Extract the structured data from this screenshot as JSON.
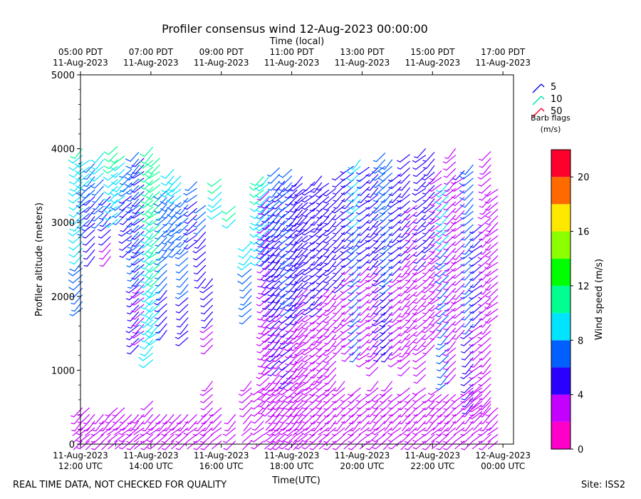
{
  "chart_data": {
    "type": "wind-barb",
    "title": "Profiler consensus wind 12-Aug-2023 00:00:00",
    "top_axis_title": "Time (local)",
    "top_ticks": [
      {
        "t": 12,
        "line1": "05:00 PDT",
        "line2": "11-Aug-2023"
      },
      {
        "t": 14,
        "line1": "07:00 PDT",
        "line2": "11-Aug-2023"
      },
      {
        "t": 16,
        "line1": "09:00 PDT",
        "line2": "11-Aug-2023"
      },
      {
        "t": 18,
        "line1": "11:00 PDT",
        "line2": "11-Aug-2023"
      },
      {
        "t": 20,
        "line1": "13:00 PDT",
        "line2": "11-Aug-2023"
      },
      {
        "t": 22,
        "line1": "15:00 PDT",
        "line2": "11-Aug-2023"
      },
      {
        "t": 24,
        "line1": "17:00 PDT",
        "line2": "11-Aug-2023"
      }
    ],
    "bottom_ticks": [
      {
        "t": 12,
        "line1": "11-Aug-2023",
        "line2": "12:00 UTC"
      },
      {
        "t": 14,
        "line1": "11-Aug-2023",
        "line2": "14:00 UTC"
      },
      {
        "t": 16,
        "line1": "11-Aug-2023",
        "line2": "16:00 UTC"
      },
      {
        "t": 18,
        "line1": "11-Aug-2023",
        "line2": "18:00 UTC"
      },
      {
        "t": 20,
        "line1": "11-Aug-2023",
        "line2": "20:00 UTC"
      },
      {
        "t": 22,
        "line1": "11-Aug-2023",
        "line2": "22:00 UTC"
      },
      {
        "t": 24,
        "line1": "12-Aug-2023",
        "line2": "00:00 UTC"
      }
    ],
    "xlabel": "Time(UTC)",
    "ylabel": "Profiler altitude (meters)",
    "xlim_hours_utc": [
      12,
      24.3
    ],
    "ylim": [
      0,
      5000
    ],
    "y_ticks": [
      0,
      1000,
      2000,
      3000,
      4000,
      5000
    ],
    "y_tick_labels": [
      "0",
      "1000",
      "2000",
      "3000",
      "4000",
      "5000"
    ],
    "legend": {
      "title_line1": "Barb flags",
      "title_line2": "(m/s)",
      "entries": [
        {
          "label": "5",
          "color": "#1010e0"
        },
        {
          "label": "10",
          "color": "#00e0b0"
        },
        {
          "label": "50",
          "color": "#ff0030"
        }
      ]
    },
    "colorbar": {
      "label": "Wind speed (m/s)",
      "min": 0,
      "max": 22,
      "bins": [
        {
          "from": 0,
          "to": 2,
          "color": "#ff00c8"
        },
        {
          "from": 2,
          "to": 4,
          "color": "#c400ff"
        },
        {
          "from": 4,
          "to": 6,
          "color": "#2a00ff"
        },
        {
          "from": 6,
          "to": 8,
          "color": "#0060ff"
        },
        {
          "from": 8,
          "to": 10,
          "color": "#00e4ff"
        },
        {
          "from": 10,
          "to": 12,
          "color": "#00ff90"
        },
        {
          "from": 12,
          "to": 14,
          "color": "#00ff00"
        },
        {
          "from": 14,
          "to": 16,
          "color": "#8cff00"
        },
        {
          "from": 16,
          "to": 18,
          "color": "#ffe800"
        },
        {
          "from": 18,
          "to": 20,
          "color": "#ff6a00"
        },
        {
          "from": 20,
          "to": 22,
          "color": "#ff002c"
        }
      ],
      "ticks": [
        0,
        4,
        8,
        12,
        16,
        20
      ],
      "tick_labels": [
        "0",
        "4",
        "8",
        "12",
        "16",
        "20"
      ]
    },
    "barb_columns": [
      {
        "t": 12.05,
        "low": [
          0,
          500
        ],
        "high": [
          1800,
          4000
        ],
        "dir": 225,
        "spd_low": 2,
        "spd_high": 10
      },
      {
        "t": 12.25,
        "low": [
          0,
          500
        ],
        "high": [
          2900,
          3900
        ],
        "dir": 230,
        "spd_low": 3,
        "spd_high": 9
      },
      {
        "t": 12.4,
        "low": [
          0,
          450
        ],
        "high": [
          2500,
          3800
        ],
        "dir": 225,
        "spd_low": 2,
        "spd_high": 7
      },
      {
        "t": 12.65,
        "low": [
          0,
          450
        ],
        "high": [
          3000,
          4000
        ],
        "dir": 225,
        "spd_low": 3,
        "spd_high": 9
      },
      {
        "t": 12.85,
        "low": [
          0,
          450
        ],
        "high": [
          2500,
          3400
        ],
        "dir": 225,
        "spd_low": 2,
        "spd_high": 6
      },
      {
        "t": 13.05,
        "low": [
          0,
          500
        ],
        "high": [
          3000,
          4050
        ],
        "dir": 230,
        "spd_low": 2,
        "spd_high": 11
      },
      {
        "t": 13.25,
        "low": [
          0,
          500
        ],
        "high": [
          3050,
          3900
        ],
        "dir": 230,
        "spd_low": 2,
        "spd_high": 10
      },
      {
        "t": 13.45,
        "low": [
          0,
          450
        ],
        "high": [
          2600,
          3800
        ],
        "dir": 230,
        "spd_low": 3,
        "spd_high": 7
      },
      {
        "t": 13.65,
        "low": [
          0,
          450
        ],
        "high": [
          1300,
          4000
        ],
        "dir": 225,
        "spd_low": 3,
        "spd_high": 8
      },
      {
        "t": 13.8,
        "low": [
          0,
          450
        ],
        "high": [
          1400,
          3900
        ],
        "dir": 230,
        "spd_low": 2,
        "spd_high": 6
      },
      {
        "t": 14.05,
        "low": [
          0,
          600
        ],
        "high": [
          1100,
          4050
        ],
        "dir": 225,
        "spd_low": 3,
        "spd_high": 11
      },
      {
        "t": 14.25,
        "low": [
          0,
          450
        ],
        "high": [
          1400,
          3900
        ],
        "dir": 230,
        "spd_low": 3,
        "spd_high": 12
      },
      {
        "t": 14.45,
        "low": [
          0,
          450
        ],
        "high": [
          1500,
          3500
        ],
        "dir": 225,
        "spd_low": 2,
        "spd_high": 8
      },
      {
        "t": 14.65,
        "low": [
          0,
          450
        ],
        "high": [
          2600,
          3800
        ],
        "dir": 225,
        "spd_low": 3,
        "spd_high": 9
      },
      {
        "t": 14.85,
        "low": [
          0,
          450
        ],
        "high": [
          2600,
          3700
        ],
        "dir": 230,
        "spd_low": 2,
        "spd_high": 9
      },
      {
        "t": 15.05,
        "low": [
          0,
          450
        ],
        "high": [
          1400,
          3400
        ],
        "dir": 225,
        "spd_low": 3,
        "spd_high": 8
      },
      {
        "t": 15.3,
        "low": [
          0,
          400
        ],
        "high": [
          2700,
          3600
        ],
        "dir": 230,
        "spd_low": 2,
        "spd_high": 7
      },
      {
        "t": 15.55,
        "low": [
          0,
          450
        ],
        "high": [
          2200,
          3300
        ],
        "dir": 225,
        "spd_low": 3,
        "spd_high": 7
      },
      {
        "t": 15.75,
        "low": [
          0,
          900
        ],
        "high": [
          1300,
          2300
        ],
        "dir": 225,
        "spd_low": 3,
        "spd_high": 6
      },
      {
        "t": 16.0,
        "low": [
          0,
          500
        ],
        "high": [
          3100,
          3600
        ],
        "dir": 230,
        "spd_low": 2,
        "spd_high": 11
      },
      {
        "t": 16.4,
        "low": [
          0,
          450
        ],
        "high": [
          3000,
          3300
        ],
        "dir": 225,
        "spd_low": 3,
        "spd_high": 12
      },
      {
        "t": 16.85,
        "low": [
          0,
          900
        ],
        "high": [
          1700,
          2800
        ],
        "dir": 225,
        "spd_low": 2,
        "spd_high": 9
      },
      {
        "t": 17.2,
        "low": [
          0,
          800
        ],
        "high": [
          2500,
          3700
        ],
        "dir": 230,
        "spd_low": 3,
        "spd_high": 11
      },
      {
        "t": 17.35,
        "low": [
          500,
          3500
        ],
        "high": [
          2500,
          3700
        ],
        "dir": 225,
        "spd_low": 3,
        "spd_high": 10
      },
      {
        "t": 17.5,
        "low": [
          0,
          900
        ],
        "high": [
          1000,
          3300
        ],
        "dir": 230,
        "spd_low": 2,
        "spd_high": 6
      },
      {
        "t": 17.65,
        "low": [
          0,
          1000
        ],
        "high": [
          1000,
          3800
        ],
        "dir": 225,
        "spd_low": 3,
        "spd_high": 7
      },
      {
        "t": 17.8,
        "low": [
          0,
          1000
        ],
        "high": [
          1000,
          3600
        ],
        "dir": 225,
        "spd_low": 3,
        "spd_high": 6
      },
      {
        "t": 18.0,
        "low": [
          0,
          800
        ],
        "high": [
          800,
          3800
        ],
        "dir": 230,
        "spd_low": 3,
        "spd_high": 8
      },
      {
        "t": 18.15,
        "low": [
          0,
          700
        ],
        "high": [
          700,
          3600
        ],
        "dir": 225,
        "spd_low": 3,
        "spd_high": 6
      },
      {
        "t": 18.3,
        "low": [
          0,
          700
        ],
        "high": [
          700,
          3700
        ],
        "dir": 225,
        "spd_low": 2,
        "spd_high": 6
      },
      {
        "t": 18.45,
        "low": [
          0,
          800
        ],
        "high": [
          800,
          3500
        ],
        "dir": 230,
        "spd_low": 3,
        "spd_high": 5
      },
      {
        "t": 18.65,
        "low": [
          0,
          900
        ],
        "high": [
          900,
          3600
        ],
        "dir": 230,
        "spd_low": 3,
        "spd_high": 6
      },
      {
        "t": 18.85,
        "low": [
          0,
          800
        ],
        "high": [
          800,
          3700
        ],
        "dir": 225,
        "spd_low": 3,
        "spd_high": 6
      },
      {
        "t": 19.05,
        "low": [
          0,
          700
        ],
        "high": [
          700,
          3600
        ],
        "dir": 230,
        "spd_low": 2,
        "spd_high": 5
      },
      {
        "t": 19.25,
        "low": [
          0,
          900
        ],
        "high": [
          900,
          3500
        ],
        "dir": 225,
        "spd_low": 3,
        "spd_high": 5
      },
      {
        "t": 19.5,
        "low": [
          0,
          900
        ],
        "high": [
          1300,
          3700
        ],
        "dir": 225,
        "spd_low": 3,
        "spd_high": 6
      },
      {
        "t": 19.75,
        "low": [
          0,
          700
        ],
        "high": [
          1200,
          3800
        ],
        "dir": 230,
        "spd_low": 2,
        "spd_high": 5
      },
      {
        "t": 19.95,
        "low": [
          0,
          800
        ],
        "high": [
          1200,
          3900
        ],
        "dir": 225,
        "spd_low": 3,
        "spd_high": 9
      },
      {
        "t": 20.2,
        "low": [
          0,
          700
        ],
        "high": [
          1100,
          3800
        ],
        "dir": 230,
        "spd_low": 2,
        "spd_high": 5
      },
      {
        "t": 20.45,
        "low": [
          0,
          900
        ],
        "high": [
          1000,
          3800
        ],
        "dir": 225,
        "spd_low": 3,
        "spd_high": 5
      },
      {
        "t": 20.65,
        "low": [
          0,
          700
        ],
        "high": [
          1200,
          4000
        ],
        "dir": 230,
        "spd_low": 3,
        "spd_high": 7
      },
      {
        "t": 20.85,
        "low": [
          0,
          900
        ],
        "high": [
          1200,
          3900
        ],
        "dir": 225,
        "spd_low": 2,
        "spd_high": 8
      },
      {
        "t": 21.1,
        "low": [
          0,
          700
        ],
        "high": [
          1100,
          3700
        ],
        "dir": 230,
        "spd_low": 3,
        "spd_high": 5
      },
      {
        "t": 21.35,
        "low": [
          0,
          800
        ],
        "high": [
          1000,
          4000
        ],
        "dir": 225,
        "spd_low": 2,
        "spd_high": 5
      },
      {
        "t": 21.55,
        "low": [
          0,
          700
        ],
        "high": [
          1300,
          3300
        ],
        "dir": 225,
        "spd_low": 3,
        "spd_high": 3
      },
      {
        "t": 21.8,
        "low": [
          0,
          800
        ],
        "high": [
          900,
          4000
        ],
        "dir": 230,
        "spd_low": 3,
        "spd_high": 5
      },
      {
        "t": 22.05,
        "low": [
          0,
          700
        ],
        "high": [
          1300,
          4000
        ],
        "dir": 225,
        "spd_low": 3,
        "spd_high": 5
      },
      {
        "t": 22.25,
        "low": [
          0,
          800
        ],
        "high": [
          1500,
          3700
        ],
        "dir": 230,
        "spd_low": 2,
        "spd_high": 3
      },
      {
        "t": 22.45,
        "low": [
          0,
          700
        ],
        "high": [
          800,
          3600
        ],
        "dir": 225,
        "spd_low": 3,
        "spd_high": 9
      },
      {
        "t": 22.65,
        "low": [
          0,
          700
        ],
        "high": [
          900,
          4000
        ],
        "dir": 225,
        "spd_low": 3,
        "spd_high": 3
      },
      {
        "t": 22.9,
        "low": [
          0,
          700
        ],
        "high": [
          1500,
          3700
        ],
        "dir": 230,
        "spd_low": 2,
        "spd_high": 4
      },
      {
        "t": 23.15,
        "low": [
          0,
          800
        ],
        "high": [
          500,
          3800
        ],
        "dir": 225,
        "spd_low": 3,
        "spd_high": 8
      },
      {
        "t": 23.4,
        "low": [
          0,
          800
        ],
        "high": [
          400,
          3000
        ],
        "dir": 230,
        "spd_low": 2,
        "spd_high": 5
      },
      {
        "t": 23.65,
        "low": [
          0,
          600
        ],
        "high": [
          500,
          4000
        ],
        "dir": 225,
        "spd_low": 3,
        "spd_high": 4
      },
      {
        "t": 23.85,
        "low": [
          0,
          500
        ],
        "high": [
          1700,
          3500
        ],
        "dir": 230,
        "spd_low": 2,
        "spd_high": 3
      }
    ]
  },
  "footer": {
    "disclaimer": "REAL TIME DATA, NOT CHECKED FOR QUALITY",
    "site": "Site: ISS2"
  }
}
